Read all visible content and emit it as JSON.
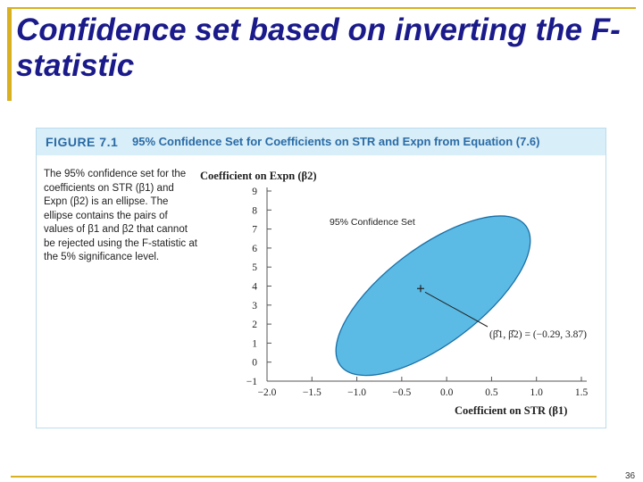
{
  "slide": {
    "title": "Confidence set based on inverting the F-statistic",
    "page_number": "36"
  },
  "figure": {
    "number": "FIGURE 7.1",
    "caption": "95% Confidence Set for Coefficients on STR and Expn from Equation (7.6)",
    "description": "The 95% confidence set for the coefficients on STR (β1) and Expn (β2) is an ellipse. The ellipse contains the pairs of values of β1 and β2 that cannot be rejected using the F-statistic at the 5% significance level.",
    "ellipse_label": "95% Confidence Set",
    "point_label": "(β̂1, β̂2) = (−0.29, 3.87)"
  },
  "chart_data": {
    "type": "scatter",
    "xlabel": "Coefficient on STR (β1)",
    "ylabel": "Coefficient on Expn (β2)",
    "x_ticks": [
      "−2.0",
      "−1.5",
      "−1.0",
      "−0.5",
      "0.0",
      "0.5",
      "1.0",
      "1.5"
    ],
    "y_ticks": [
      "−1",
      "0",
      "1",
      "2",
      "3",
      "4",
      "5",
      "6",
      "7",
      "8",
      "9"
    ],
    "xlim": [
      -2.0,
      1.5
    ],
    "ylim": [
      -1,
      9
    ],
    "point": {
      "x": -0.29,
      "y": 3.87
    },
    "ellipse_color": "#5bbbe5",
    "ellipse_stroke": "#1a6fa6",
    "grid": false
  }
}
